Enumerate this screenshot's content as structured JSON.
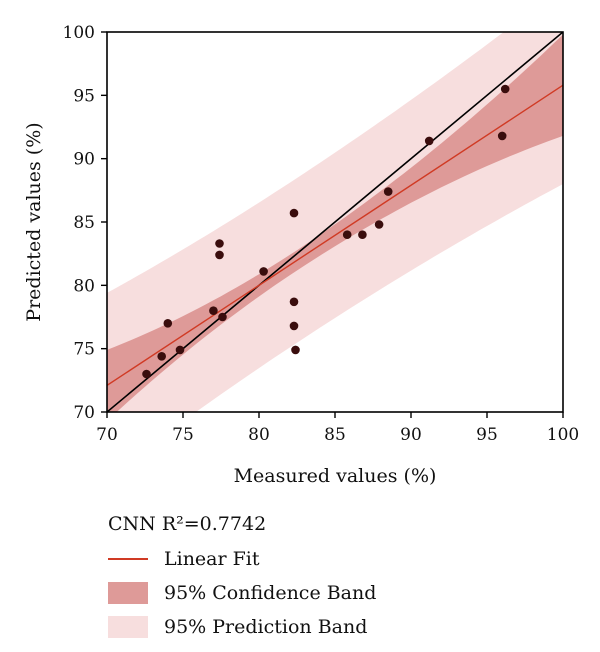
{
  "chart_data": {
    "type": "scatter",
    "xlabel": "Measured values (%)",
    "ylabel": "Predicted values (%)",
    "xlim": [
      70,
      100
    ],
    "ylim": [
      70,
      100
    ],
    "x_ticks": [
      70,
      75,
      80,
      85,
      90,
      95,
      100
    ],
    "y_ticks": [
      70,
      75,
      80,
      85,
      90,
      95,
      100
    ],
    "grid": false,
    "legend_placement": "below",
    "series": [
      {
        "type": "scatter",
        "points": [
          [
            72.6,
            73.0
          ],
          [
            73.6,
            74.4
          ],
          [
            74.0,
            77.0
          ],
          [
            74.8,
            74.9
          ],
          [
            77.0,
            78.0
          ],
          [
            77.4,
            83.3
          ],
          [
            77.4,
            82.4
          ],
          [
            77.6,
            77.5
          ],
          [
            80.3,
            81.1
          ],
          [
            82.3,
            85.7
          ],
          [
            82.3,
            78.7
          ],
          [
            82.3,
            76.8
          ],
          [
            82.4,
            74.9
          ],
          [
            85.8,
            84.0
          ],
          [
            86.8,
            84.0
          ],
          [
            87.9,
            84.8
          ],
          [
            88.5,
            87.4
          ],
          [
            91.2,
            91.4
          ],
          [
            96.0,
            91.8
          ],
          [
            96.2,
            95.5
          ]
        ],
        "color": "#3a0d0d"
      }
    ],
    "identity_line": {
      "from": [
        70,
        70
      ],
      "to": [
        100,
        100
      ],
      "color": "#000000"
    },
    "linear_fit": {
      "slope": 0.79,
      "intercept": 16.8,
      "color": "#d03a24"
    },
    "confidence_band_halfwidth": {
      "at_center": 0.8,
      "at_x_min": 2.8,
      "at_x_max": 4.0,
      "center_x": 82.5
    },
    "prediction_band_halfwidth": {
      "at_center": 6.5,
      "at_x_min": 7.3,
      "at_x_max": 7.8,
      "center_x": 82.5
    },
    "colors": {
      "confidence_band": "#de9a98",
      "prediction_band": "#f7dede",
      "fit_line": "#d03a24",
      "identity_line": "#000000",
      "points": "#3a0d0d"
    }
  },
  "legend": {
    "title": "CNN R²=0.7742",
    "items": [
      {
        "label": "Linear Fit",
        "kind": "line",
        "color": "#d03a24"
      },
      {
        "label": "95% Confidence Band",
        "kind": "swatch",
        "color": "#de9a98"
      },
      {
        "label": "95% Prediction Band",
        "kind": "swatch",
        "color": "#f7dede"
      }
    ]
  }
}
